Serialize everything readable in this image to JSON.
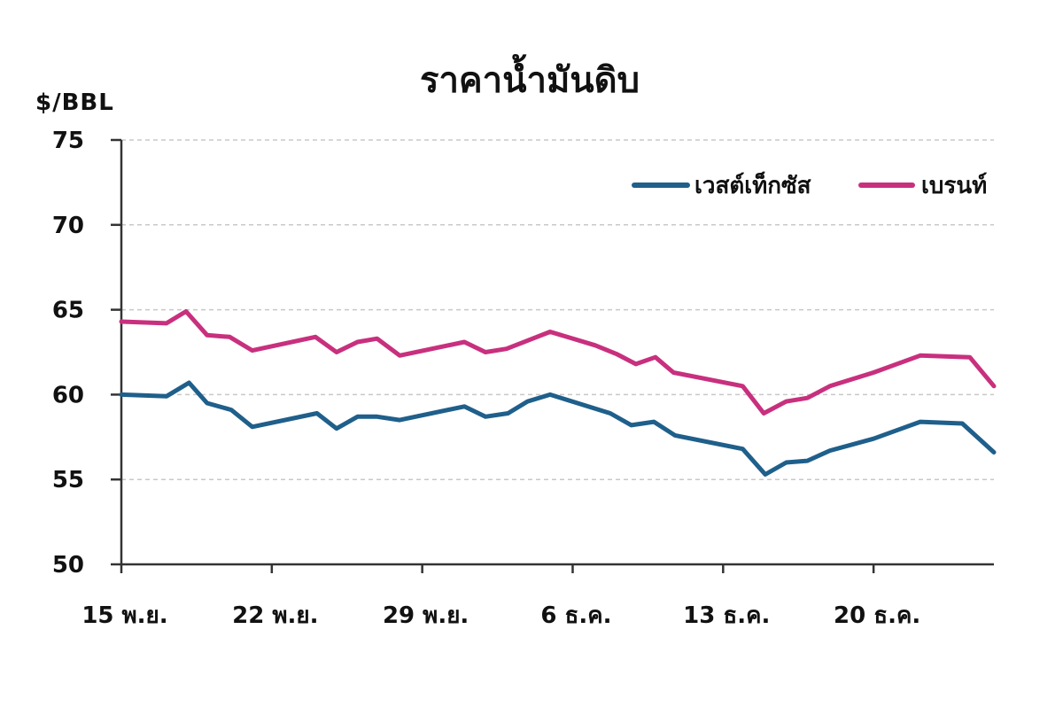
{
  "chart_data": {
    "type": "line",
    "title": "ราคาน้ำมันดิบ",
    "ylabel": "$/BBL",
    "ylim": [
      50,
      75
    ],
    "yticks": [
      50,
      55,
      60,
      65,
      70,
      75
    ],
    "xlim": [
      0,
      58
    ],
    "x_ticks": [
      {
        "label": "15 พ.ย.",
        "x": 0
      },
      {
        "label": "22 พ.ย.",
        "x": 10
      },
      {
        "label": "29 พ.ย.",
        "x": 20
      },
      {
        "label": "6 ธ.ค.",
        "x": 30
      },
      {
        "label": "13 ธ.ค.",
        "x": 40
      },
      {
        "label": "20 ธ.ค.",
        "x": 50
      }
    ],
    "grid": true,
    "legend_position": "top-right",
    "series": [
      {
        "name": "เวสต์เท็กซัส",
        "color": "#1f5f8b",
        "points": [
          [
            0,
            60.0
          ],
          [
            3,
            59.9
          ],
          [
            4.5,
            60.7
          ],
          [
            5.7,
            59.5
          ],
          [
            7.3,
            59.1
          ],
          [
            8.7,
            58.1
          ],
          [
            13,
            58.9
          ],
          [
            14.3,
            58.0
          ],
          [
            15.7,
            58.7
          ],
          [
            17,
            58.7
          ],
          [
            18.5,
            58.5
          ],
          [
            22.8,
            59.3
          ],
          [
            24.2,
            58.7
          ],
          [
            25.7,
            58.9
          ],
          [
            27,
            59.6
          ],
          [
            28.5,
            60.0
          ],
          [
            32.5,
            58.9
          ],
          [
            33.9,
            58.2
          ],
          [
            35.4,
            58.4
          ],
          [
            36.8,
            57.6
          ],
          [
            41.3,
            56.8
          ],
          [
            42.8,
            55.3
          ],
          [
            44.2,
            56.0
          ],
          [
            45.6,
            56.1
          ],
          [
            47.1,
            56.7
          ],
          [
            50,
            57.4
          ],
          [
            53.1,
            58.4
          ],
          [
            55.9,
            58.3
          ],
          [
            58,
            56.6
          ]
        ]
      },
      {
        "name": "เบรนท์",
        "color": "#c8307e",
        "points": [
          [
            0,
            64.3
          ],
          [
            3,
            64.2
          ],
          [
            4.3,
            64.9
          ],
          [
            5.7,
            63.5
          ],
          [
            7.2,
            63.4
          ],
          [
            8.7,
            62.6
          ],
          [
            12.9,
            63.4
          ],
          [
            14.3,
            62.5
          ],
          [
            15.7,
            63.1
          ],
          [
            17,
            63.3
          ],
          [
            18.5,
            62.3
          ],
          [
            22.8,
            63.1
          ],
          [
            24.2,
            62.5
          ],
          [
            25.6,
            62.7
          ],
          [
            28.5,
            63.7
          ],
          [
            31.5,
            62.9
          ],
          [
            32.9,
            62.4
          ],
          [
            34.2,
            61.8
          ],
          [
            35.5,
            62.2
          ],
          [
            36.7,
            61.3
          ],
          [
            41.3,
            60.5
          ],
          [
            42.7,
            58.9
          ],
          [
            44.2,
            59.6
          ],
          [
            45.6,
            59.8
          ],
          [
            47.1,
            60.5
          ],
          [
            50,
            61.3
          ],
          [
            53.1,
            62.3
          ],
          [
            56.4,
            62.2
          ],
          [
            58,
            60.5
          ]
        ]
      }
    ]
  }
}
